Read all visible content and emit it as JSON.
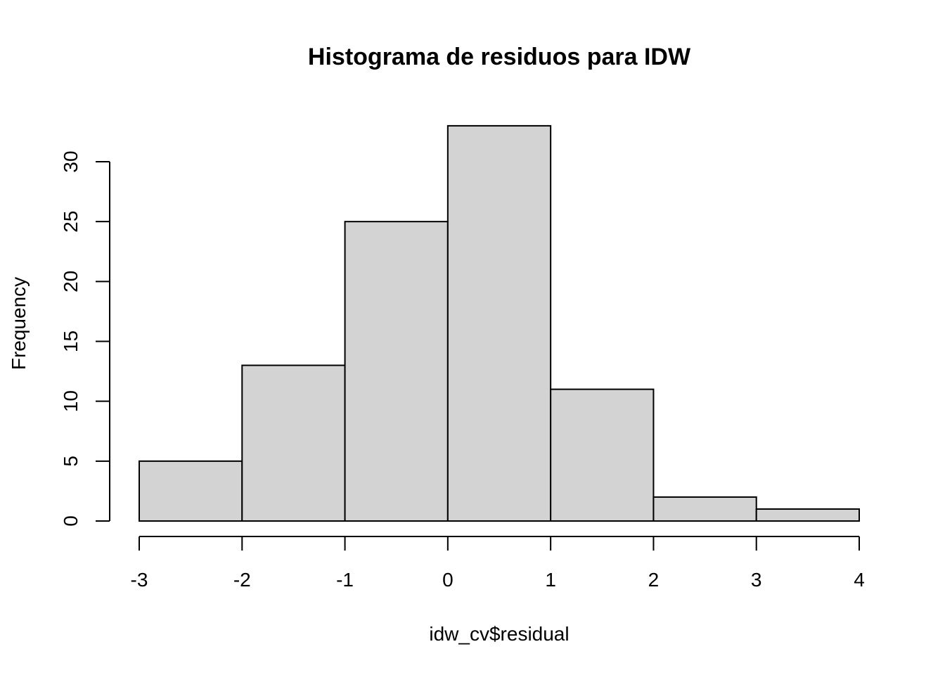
{
  "chart_data": {
    "type": "bar",
    "title": "Histograma de residuos para IDW",
    "xlabel": "idw_cv$residual",
    "ylabel": "Frequency",
    "bins": [
      {
        "from": -3,
        "to": -2,
        "count": 5
      },
      {
        "from": -2,
        "to": -1,
        "count": 13
      },
      {
        "from": -1,
        "to": 0,
        "count": 25
      },
      {
        "from": 0,
        "to": 1,
        "count": 33
      },
      {
        "from": 1,
        "to": 2,
        "count": 11
      },
      {
        "from": 2,
        "to": 3,
        "count": 2
      },
      {
        "from": 3,
        "to": 4,
        "count": 1
      }
    ],
    "xlim": [
      -3,
      4
    ],
    "ylim": [
      0,
      33
    ],
    "x_ticks": [
      -3,
      -2,
      -1,
      0,
      1,
      2,
      3,
      4
    ],
    "y_ticks": [
      0,
      5,
      10,
      15,
      20,
      25,
      30
    ],
    "grid": false,
    "colors": {
      "bar_fill": "#d3d3d3",
      "bar_stroke": "#000000"
    }
  }
}
